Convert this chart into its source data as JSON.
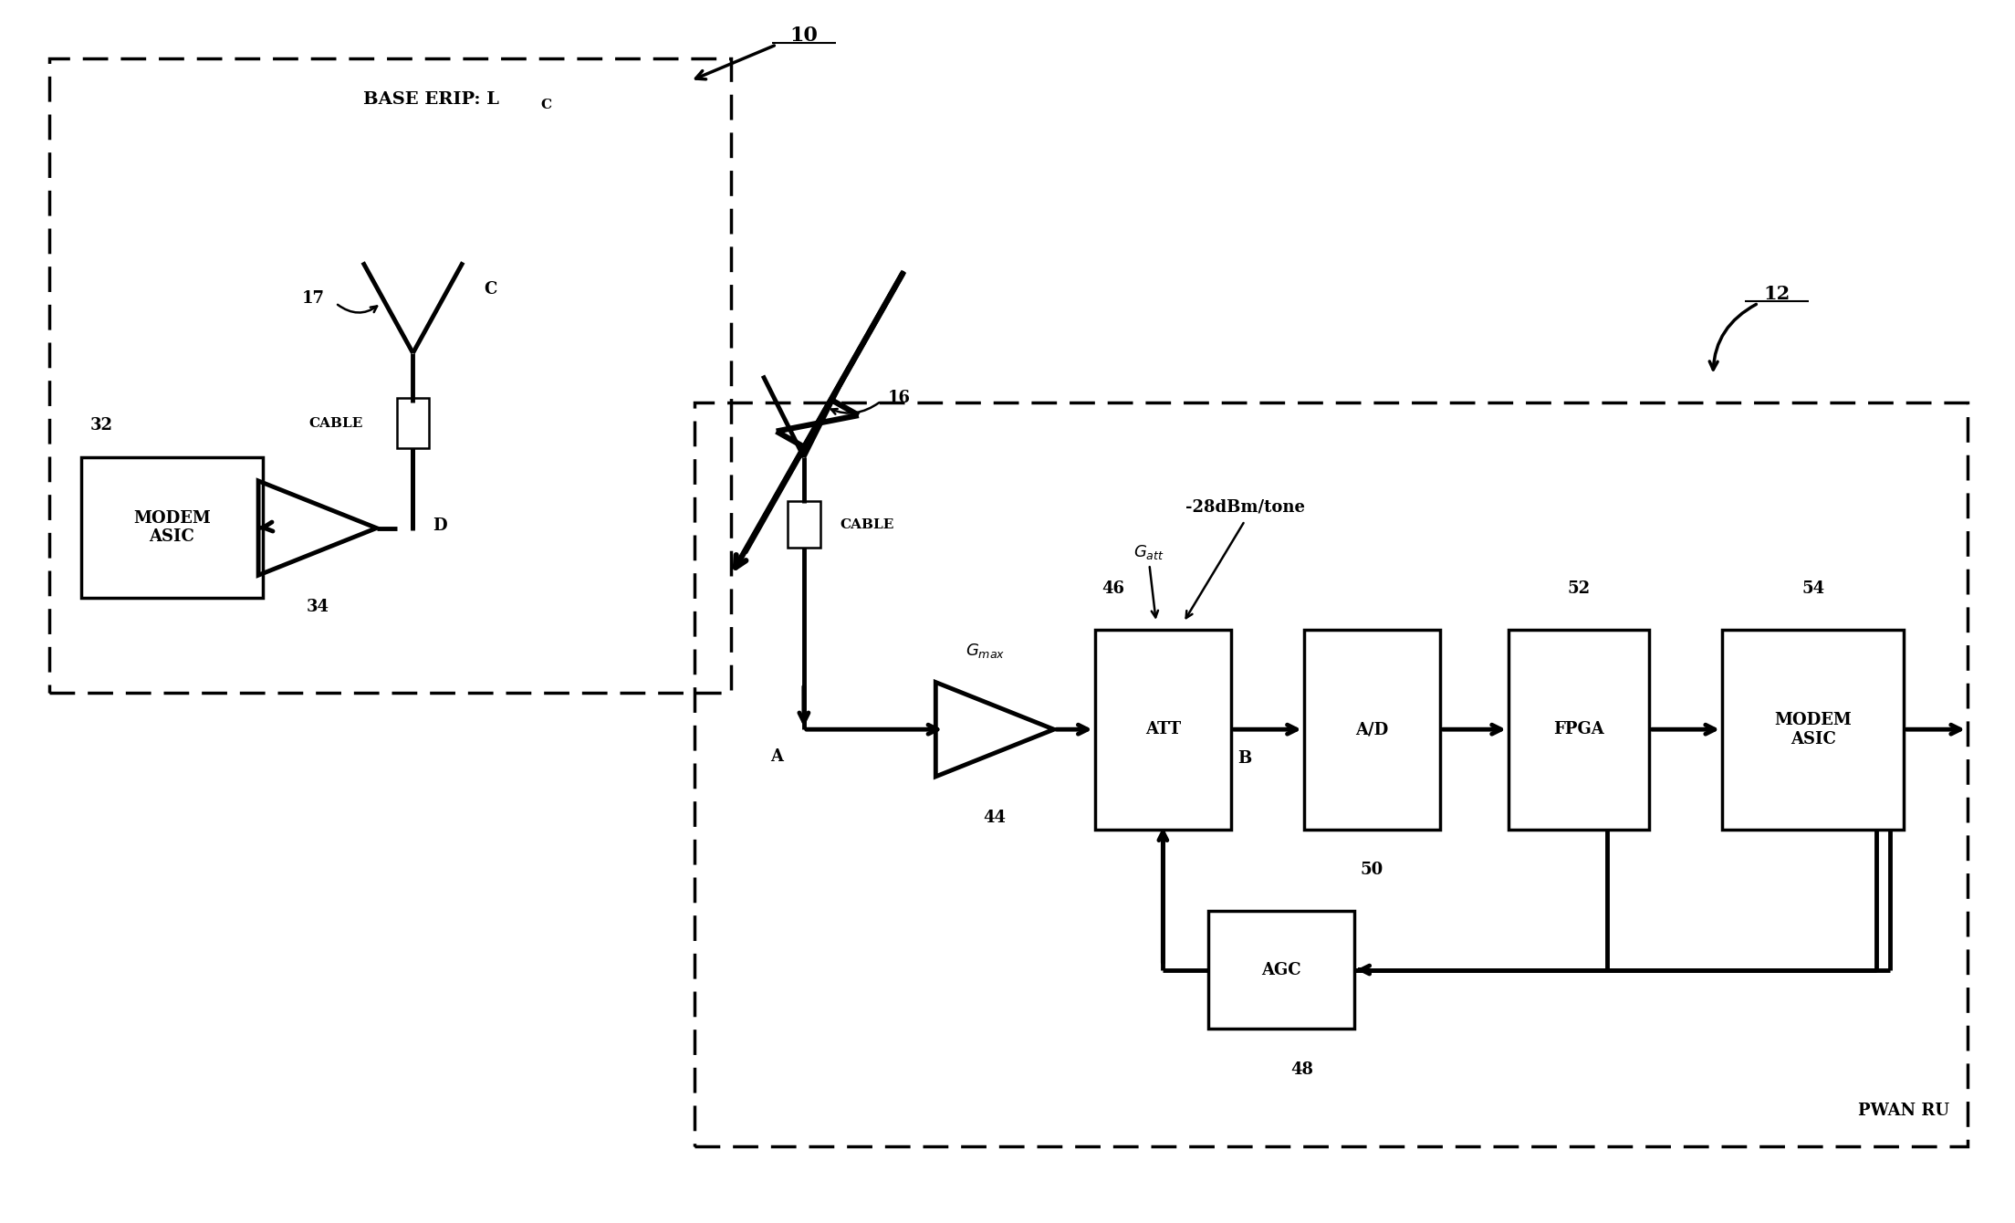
{
  "bg_color": "#ffffff",
  "line_color": "#000000",
  "fig_width": 22.08,
  "fig_height": 13.4,
  "dpi": 100,
  "label_10": "10",
  "label_12": "12",
  "label_32": "32",
  "label_34": "34",
  "label_17": "17",
  "label_16": "16",
  "label_44": "44",
  "label_46": "46",
  "label_48": "48",
  "label_50": "50",
  "label_52": "52",
  "label_54": "54",
  "label_C": "C",
  "label_D": "D",
  "label_A": "A",
  "label_B": "B",
  "base_erip_label": "BASE ERIP: L",
  "base_erip_sub": "C",
  "att_label": "ATT",
  "ad_label": "A/D",
  "fpga_label": "FPGA",
  "modem_asic1_label": "MODEM\nASIC",
  "modem_asic2_label": "MODEM\nASIC",
  "agc_label": "AGC",
  "pwan_ru_label": "PWAN RU",
  "gmax_label": "G",
  "gmax_sub": "max",
  "gatt_label": "G",
  "gatt_sub": "att",
  "dbm_label": "-28dBm/tone",
  "cable_label": "CABLE"
}
